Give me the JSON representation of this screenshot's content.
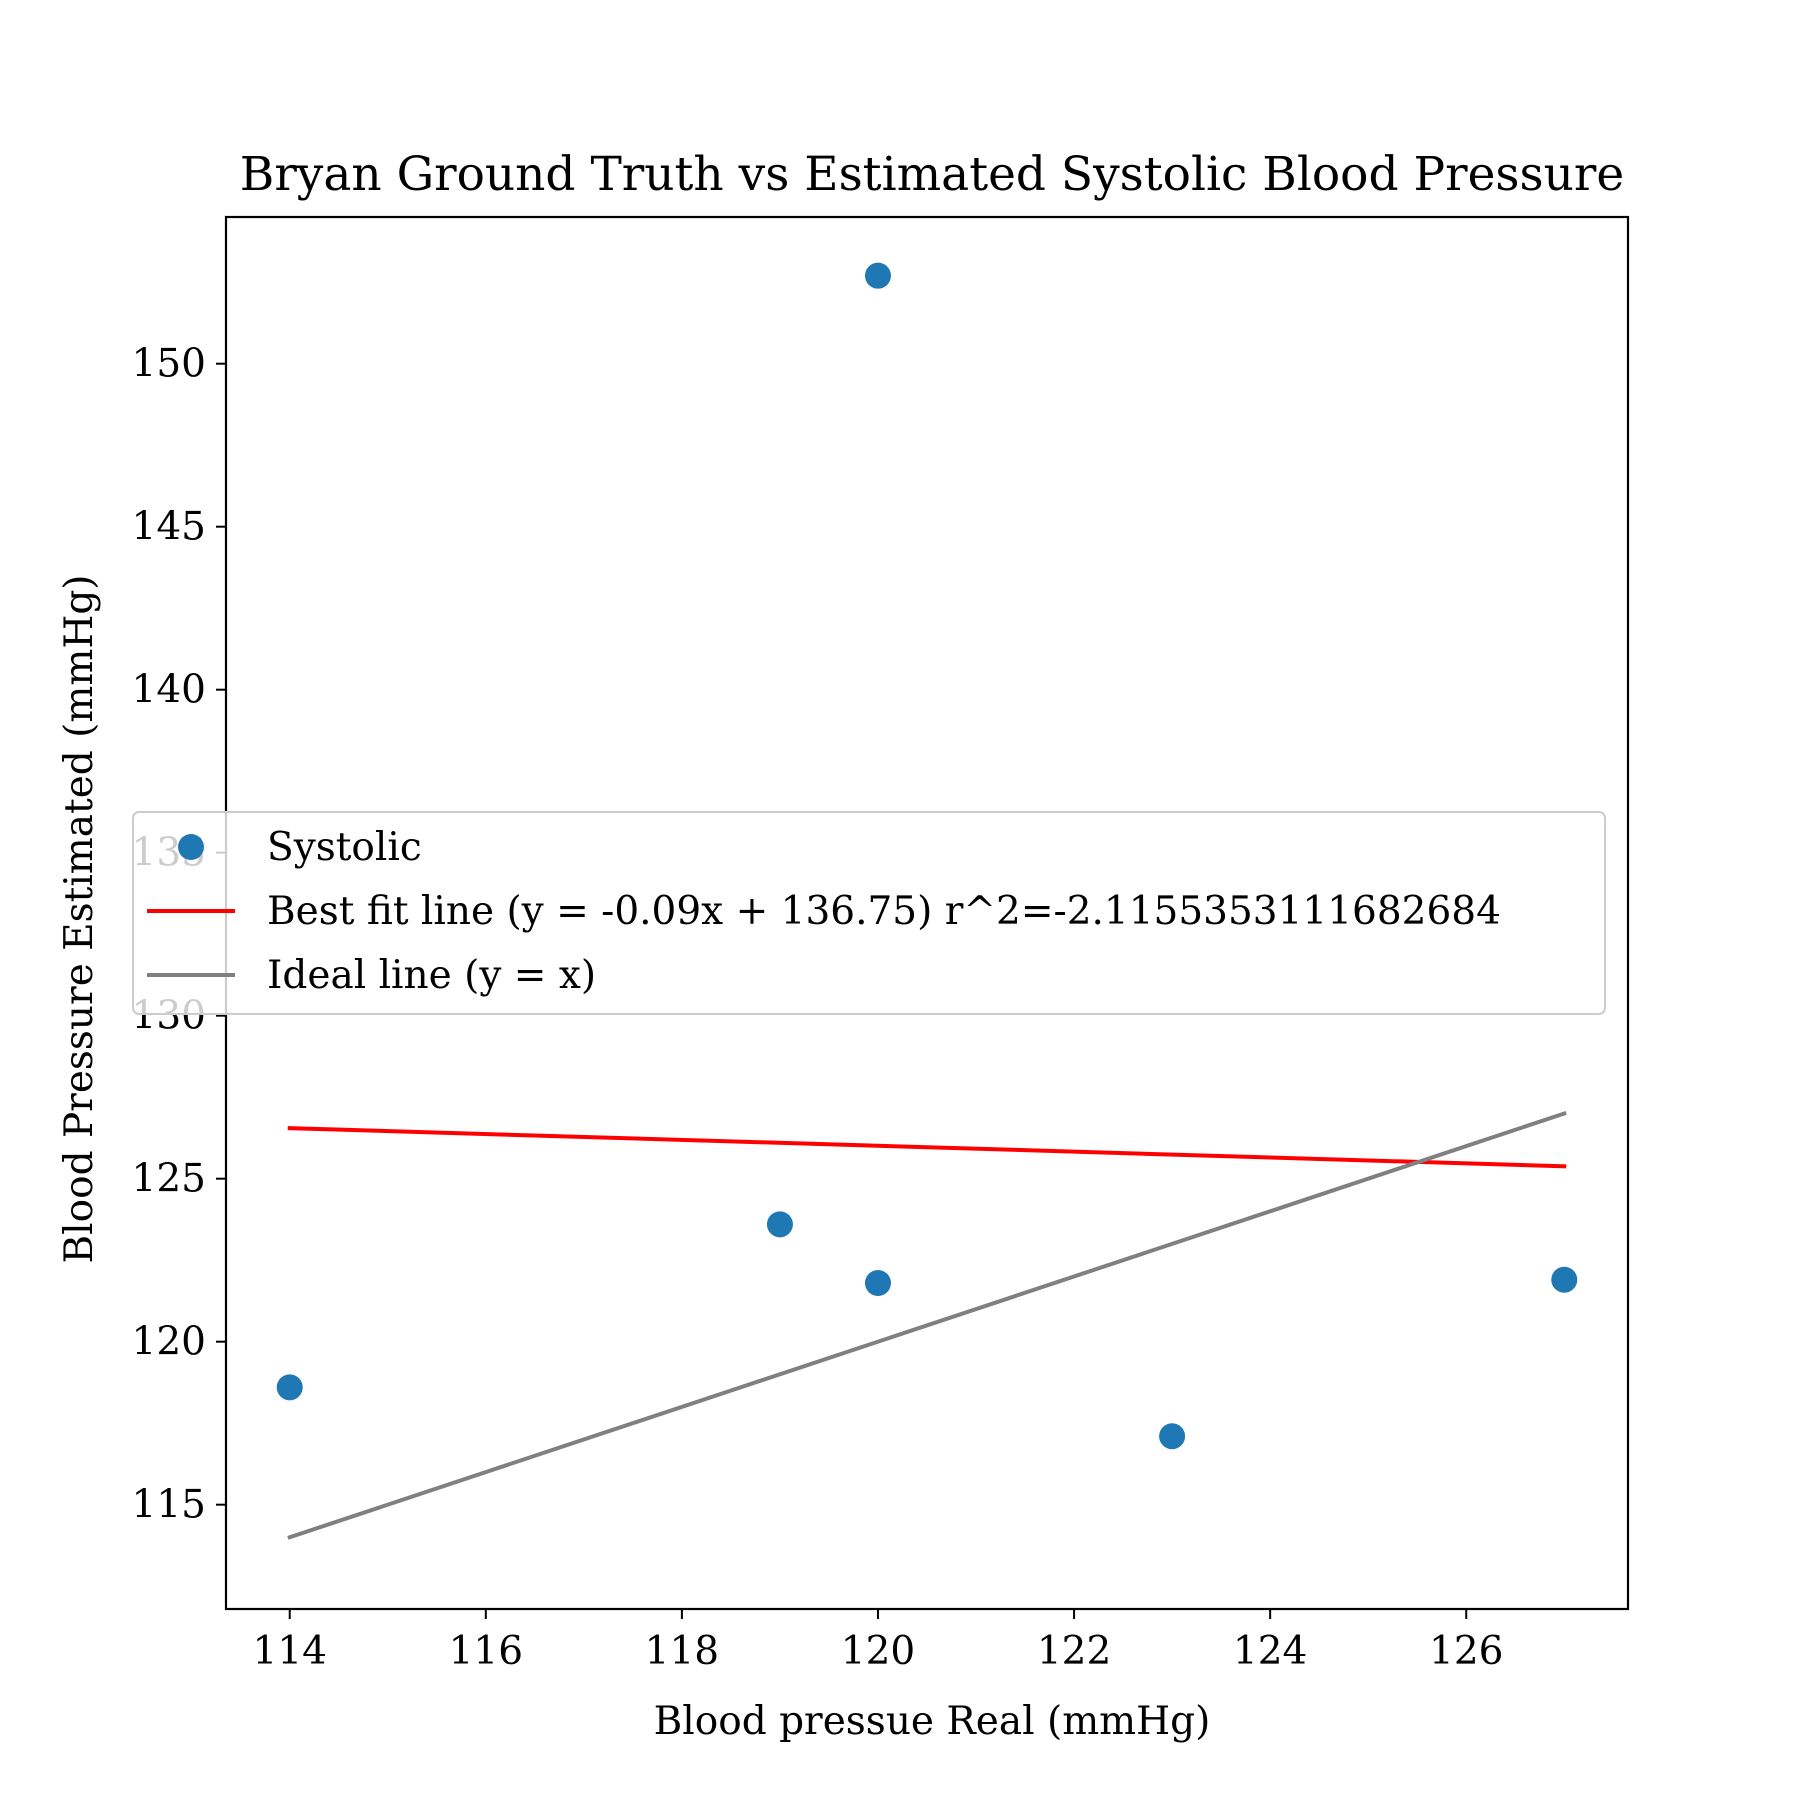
{
  "chart_data": {
    "type": "scatter",
    "title": "Bryan Ground Truth vs Estimated Systolic Blood Pressure",
    "xlabel": "Blood pressue Real (mmHg)",
    "ylabel": "Blood Pressure Estimated (mmHg)",
    "xlim": [
      113.35,
      127.65
    ],
    "ylim": [
      111.8,
      154.5
    ],
    "xticks": [
      114,
      116,
      118,
      120,
      122,
      124,
      126
    ],
    "yticks": [
      115,
      120,
      125,
      130,
      135,
      140,
      145,
      150
    ],
    "grid": false,
    "legend_position": "center-left",
    "series": [
      {
        "name": "Systolic",
        "kind": "scatter",
        "color": "#1f77b4",
        "x": [
          114,
          119,
          120,
          120,
          123,
          127
        ],
        "y": [
          118.6,
          123.6,
          121.8,
          152.7,
          117.1,
          121.9
        ]
      },
      {
        "name": "Best fit line (y = -0.09x + 136.75) r^2=-2.1155353111682684",
        "kind": "line",
        "color": "#ff0000",
        "x": [
          114,
          127
        ],
        "y": [
          126.55,
          125.38
        ]
      },
      {
        "name": "Ideal line (y = x)",
        "kind": "line",
        "color": "#808080",
        "x": [
          114,
          127
        ],
        "y": [
          114,
          127
        ]
      }
    ]
  }
}
